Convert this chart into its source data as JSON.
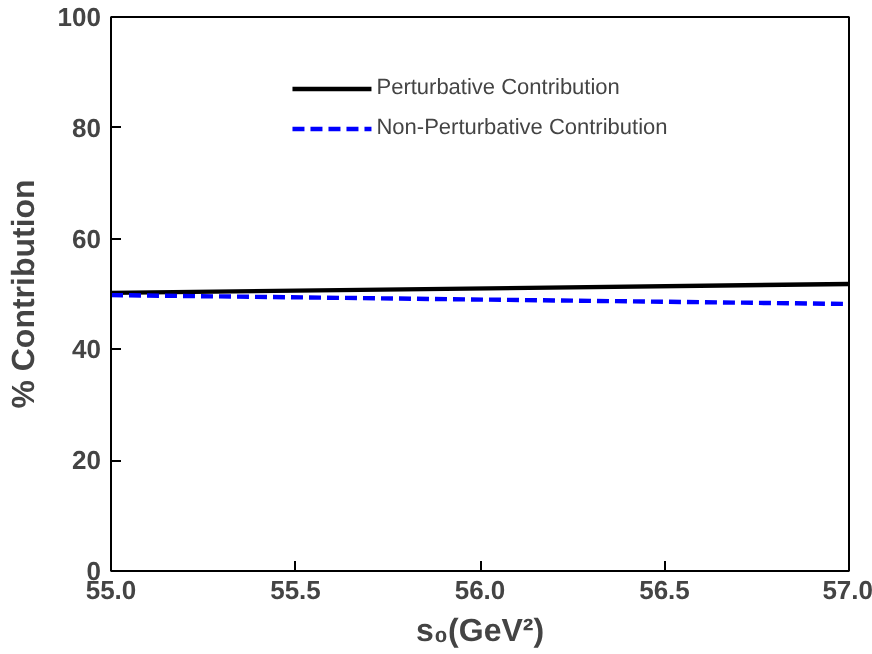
{
  "chart_data": {
    "type": "line",
    "xlabel": "s₀(GeV²)",
    "ylabel": "% Contribution",
    "x": [
      55.0,
      57.0
    ],
    "series": [
      {
        "name": "Perturbative Contribution",
        "color": "#000000",
        "values": [
          50.2,
          51.8
        ],
        "line_style": "solid"
      },
      {
        "name": "Non-Perturbative Contribution",
        "color": "#0000ff",
        "values": [
          49.8,
          48.2
        ],
        "line_style": "dashed"
      }
    ],
    "xlim": [
      55.0,
      57.0
    ],
    "ylim": [
      0,
      100
    ],
    "xticks": [
      {
        "value": 55.0,
        "label": "55.0"
      },
      {
        "value": 55.5,
        "label": "55.5"
      },
      {
        "value": 56.0,
        "label": "56.0"
      },
      {
        "value": 56.5,
        "label": "56.5"
      },
      {
        "value": 57.0,
        "label": "57.0"
      }
    ],
    "yticks": [
      0,
      20,
      40,
      60,
      80,
      100
    ],
    "grid": false,
    "legend": "top",
    "marker": "none"
  }
}
